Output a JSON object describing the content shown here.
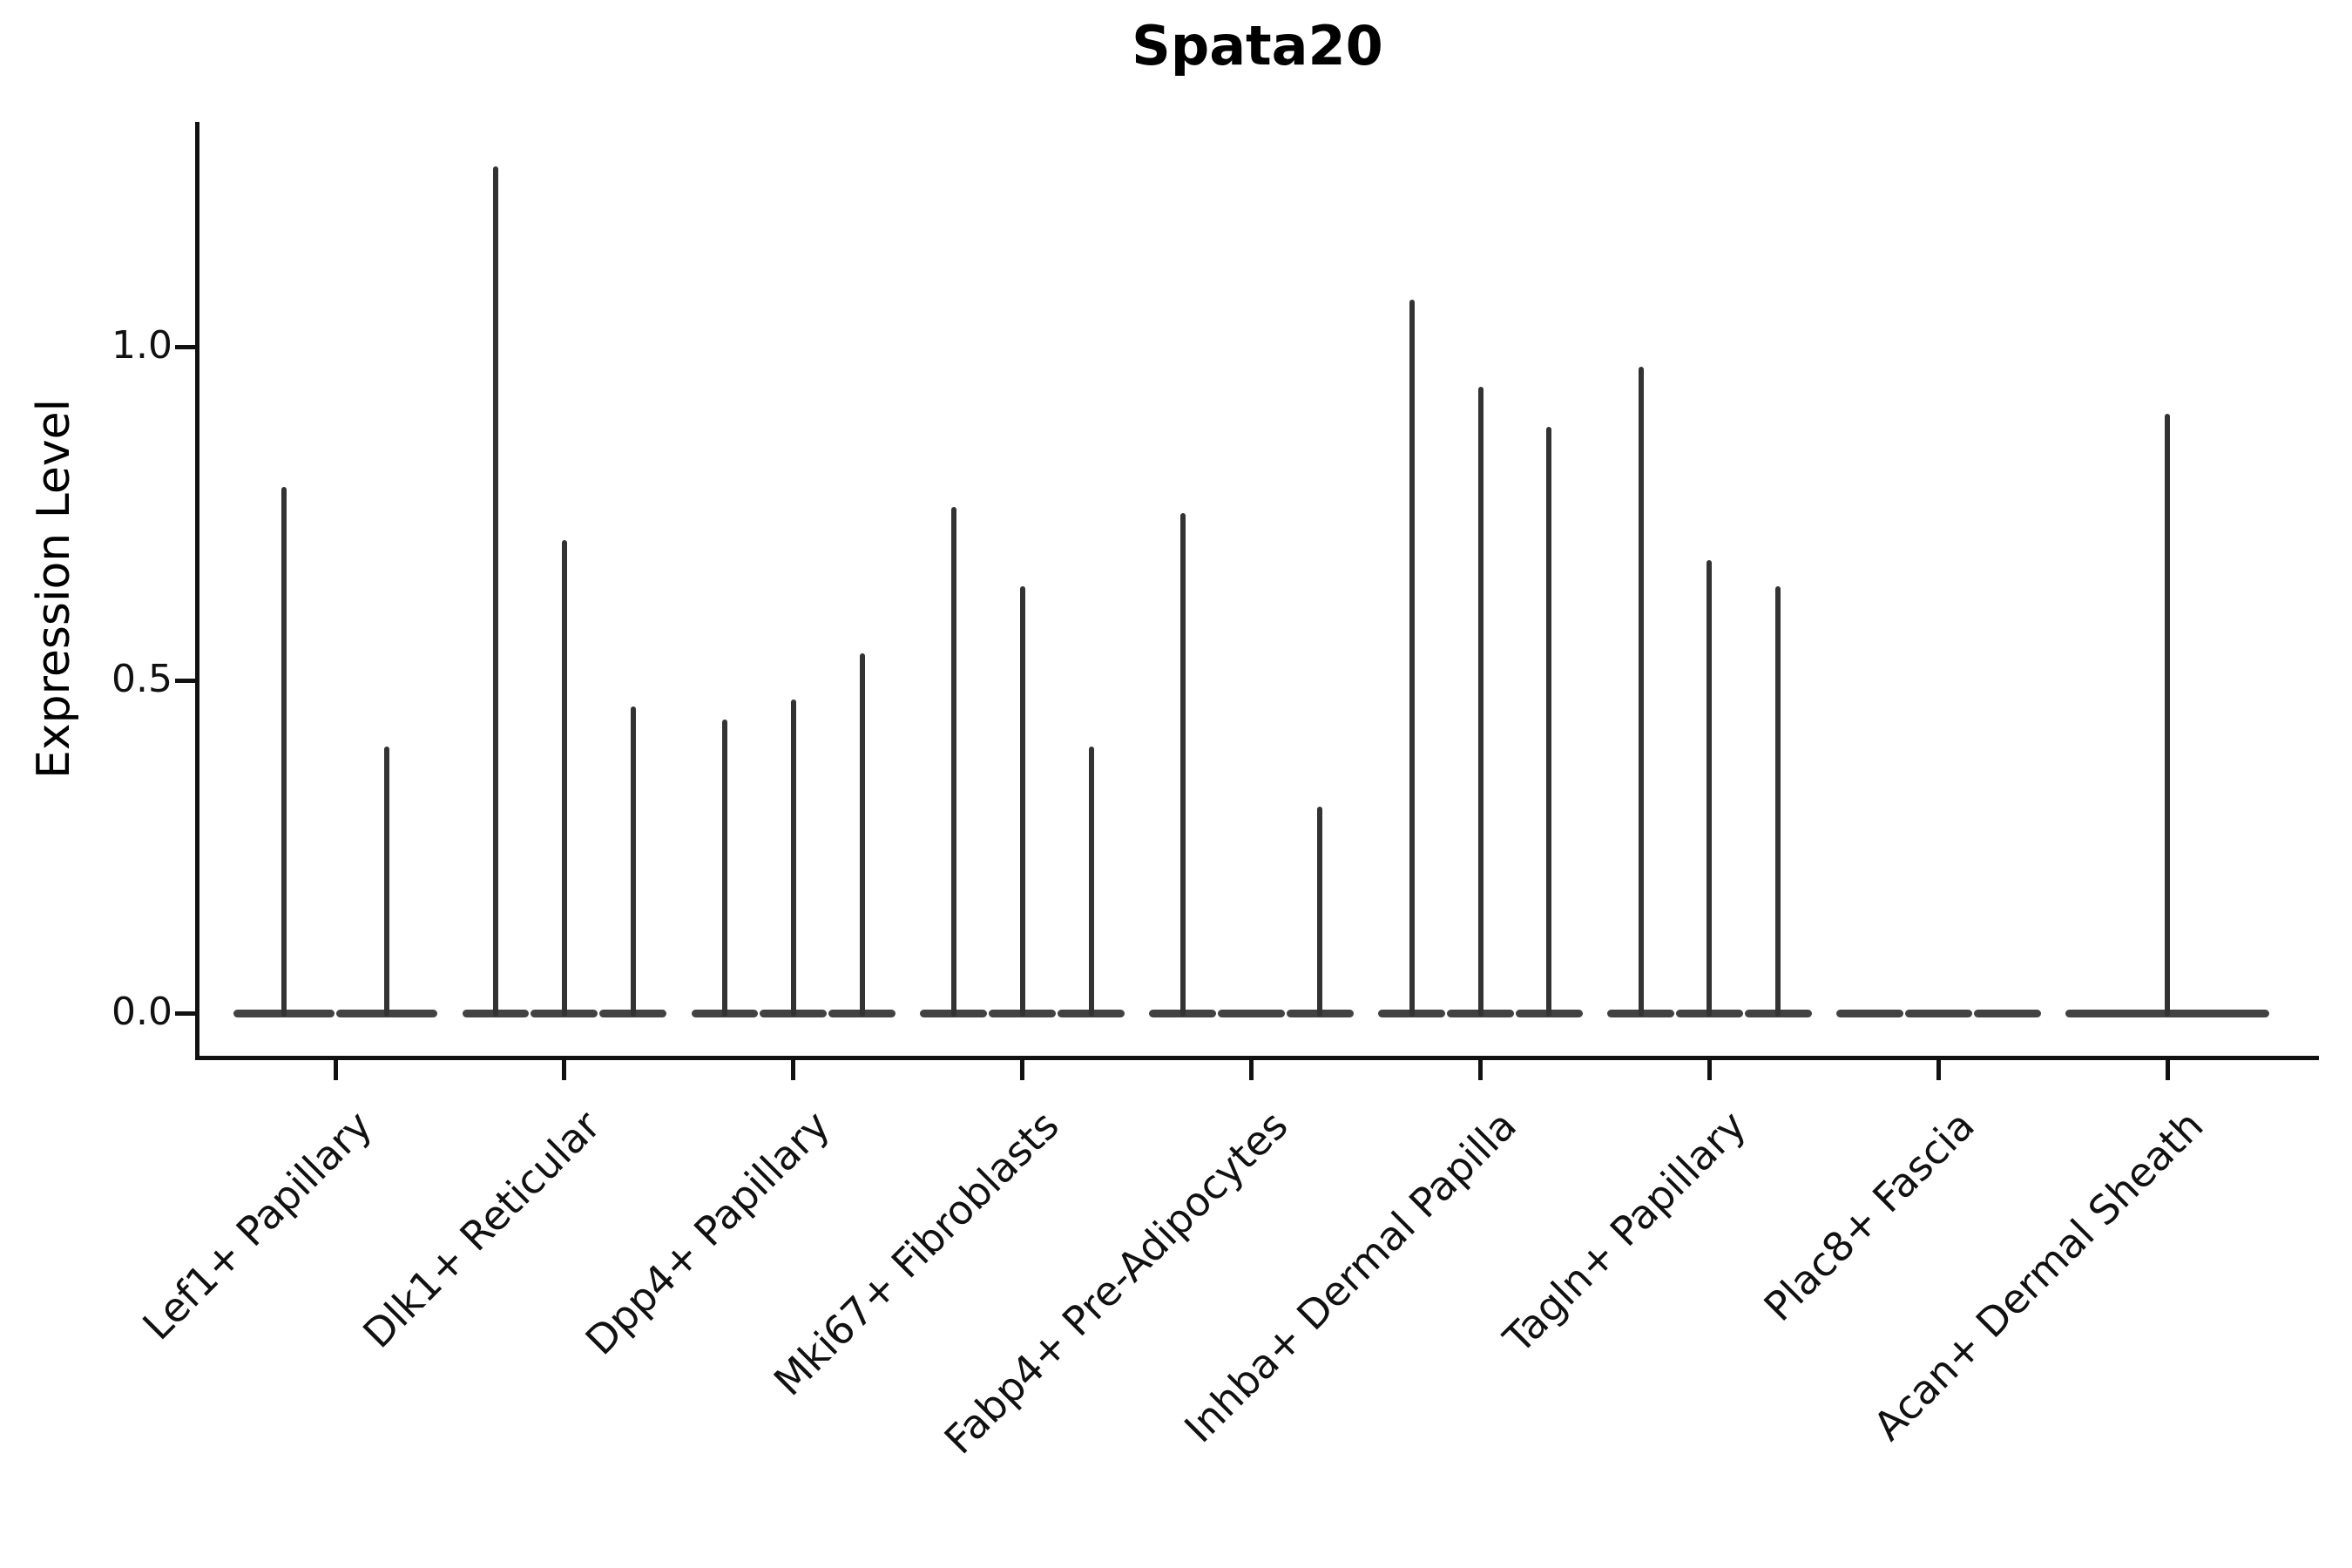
{
  "figure": {
    "title": "Spata20",
    "background_color": "#ffffff",
    "line_color": "#333333",
    "axis_color": "#111111"
  },
  "chart_data": {
    "type": "violin",
    "title": "Spata20",
    "xlabel": "",
    "ylabel": "Expression Level",
    "yticks": [
      0.0,
      0.5,
      1.0
    ],
    "ytick_labels": [
      "0.0",
      "0.5",
      "1.0"
    ],
    "ylim": [
      -0.064,
      1.337
    ],
    "grid": false,
    "legend_position": "none",
    "encoding_note": "Each category holds adjacent needle-thin violins (expression mostly 0); value listed is the peak (max) expression level of each violin, 0 = completely flat violin",
    "categories": [
      "Lef1+ Papillary",
      "Dlk1+ Reticular",
      "Dpp4+ Papillary",
      "Mki67+ Fibroblasts",
      "Fabp4+ Pre-Adipocytes",
      "Inhba+ Dermal Papilla",
      "Tagln+ Papillary",
      "Plac8+ Fascia",
      "Acan+ Dermal Sheath"
    ],
    "groups": [
      {
        "category": "Lef1+ Papillary",
        "violin_peaks": [
          0.79,
          0.4
        ]
      },
      {
        "category": "Dlk1+ Reticular",
        "violin_peaks": [
          1.27,
          0.71,
          0.46
        ]
      },
      {
        "category": "Dpp4+ Papillary",
        "violin_peaks": [
          0.44,
          0.47,
          0.54
        ]
      },
      {
        "category": "Mki67+ Fibroblasts",
        "violin_peaks": [
          0.76,
          0.64,
          0.4
        ]
      },
      {
        "category": "Fabp4+ Pre-Adipocytes",
        "violin_peaks": [
          0.75,
          0.0,
          0.31
        ]
      },
      {
        "category": "Inhba+ Dermal Papilla",
        "violin_peaks": [
          1.07,
          0.94,
          0.88
        ]
      },
      {
        "category": "Tagln+ Papillary",
        "violin_peaks": [
          0.97,
          0.68,
          0.64
        ]
      },
      {
        "category": "Plac8+ Fascia",
        "violin_peaks": [
          0.0,
          0.0,
          0.0
        ]
      },
      {
        "category": "Acan+ Dermal Sheath",
        "violin_peaks": [
          0.9
        ]
      }
    ]
  }
}
